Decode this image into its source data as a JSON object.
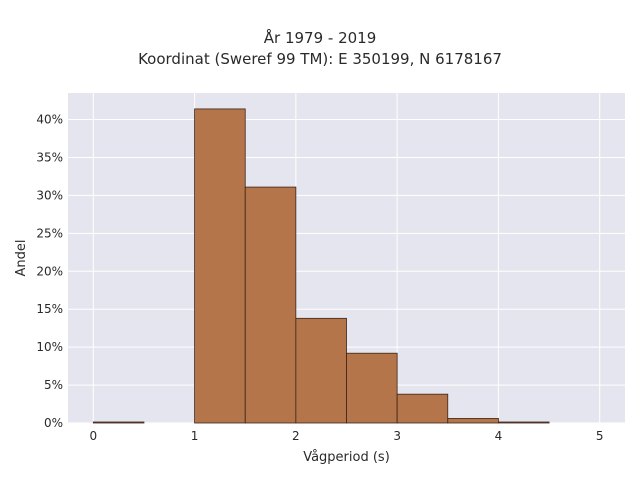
{
  "chart_data": {
    "type": "bar",
    "title_lines": [
      "År 1979 - 2019",
      "Koordinat (Sweref 99 TM): E 350199, N 6178167"
    ],
    "xlabel": "Vågperiod (s)",
    "ylabel": "Andel",
    "bin_width": 0.5,
    "bins": [
      {
        "x0": 0.0,
        "x1": 0.5,
        "value": 0.1
      },
      {
        "x0": 0.5,
        "x1": 1.0,
        "value": 0.0
      },
      {
        "x0": 1.0,
        "x1": 1.5,
        "value": 41.4
      },
      {
        "x0": 1.5,
        "x1": 2.0,
        "value": 31.1
      },
      {
        "x0": 2.0,
        "x1": 2.5,
        "value": 13.8
      },
      {
        "x0": 2.5,
        "x1": 3.0,
        "value": 9.2
      },
      {
        "x0": 3.0,
        "x1": 3.5,
        "value": 3.8
      },
      {
        "x0": 3.5,
        "x1": 4.0,
        "value": 0.6
      },
      {
        "x0": 4.0,
        "x1": 4.5,
        "value": 0.1
      },
      {
        "x0": 4.5,
        "x1": 5.0,
        "value": 0.0
      }
    ],
    "xlim": [
      -0.25,
      5.25
    ],
    "ylim": [
      0,
      43.5
    ],
    "x_ticks": [
      0,
      1,
      2,
      3,
      4,
      5
    ],
    "x_tick_labels": [
      "0",
      "1",
      "2",
      "3",
      "4",
      "5"
    ],
    "y_ticks": [
      0,
      5,
      10,
      15,
      20,
      25,
      30,
      35,
      40
    ],
    "y_tick_labels": [
      "0%",
      "5%",
      "10%",
      "15%",
      "20%",
      "25%",
      "30%",
      "35%",
      "40%"
    ],
    "grid": true,
    "colors": {
      "bar_fill": "#b5754a",
      "bar_stroke": "#3b2416",
      "plot_bg": "#e5e5ef",
      "grid": "#ffffff"
    }
  }
}
